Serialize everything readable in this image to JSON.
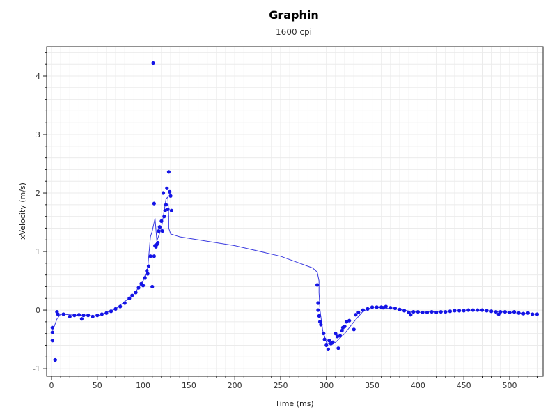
{
  "chart_data": {
    "type": "scatter",
    "title": "Graphin",
    "subtitle": "1600 cpi",
    "xlabel": "Time (ms)",
    "ylabel": "xVelocity (m/s)",
    "xlim": [
      -5.3,
      536.5
    ],
    "ylim": [
      -1.13,
      4.5
    ],
    "xticks": [
      0,
      50,
      100,
      150,
      200,
      250,
      300,
      350,
      400,
      450,
      500
    ],
    "yticks": [
      -1,
      0,
      1,
      2,
      3,
      4
    ],
    "grid": true,
    "colors": {
      "points": "#1414e6",
      "line": "#3a3ae0",
      "grid": "#ebebeb"
    },
    "series": [
      {
        "type": "scatter",
        "points": [
          [
            1,
            -0.3
          ],
          [
            1,
            -0.38
          ],
          [
            1,
            -0.52
          ],
          [
            4,
            -0.85
          ],
          [
            6,
            -0.03
          ],
          [
            7,
            -0.07
          ],
          [
            13,
            -0.07
          ],
          [
            20,
            -0.11
          ],
          [
            25,
            -0.09
          ],
          [
            30,
            -0.08
          ],
          [
            33,
            -0.15
          ],
          [
            35,
            -0.09
          ],
          [
            40,
            -0.09
          ],
          [
            45,
            -0.11
          ],
          [
            50,
            -0.09
          ],
          [
            55,
            -0.07
          ],
          [
            60,
            -0.05
          ],
          [
            65,
            -0.02
          ],
          [
            70,
            0.02
          ],
          [
            75,
            0.06
          ],
          [
            80,
            0.12
          ],
          [
            85,
            0.2
          ],
          [
            88,
            0.25
          ],
          [
            92,
            0.3
          ],
          [
            95,
            0.38
          ],
          [
            98,
            0.45
          ],
          [
            100,
            0.42
          ],
          [
            102,
            0.55
          ],
          [
            104,
            0.67
          ],
          [
            105,
            0.62
          ],
          [
            106,
            0.75
          ],
          [
            108,
            0.92
          ],
          [
            110,
            0.4
          ],
          [
            111,
            4.22
          ],
          [
            112,
            1.82
          ],
          [
            112,
            0.92
          ],
          [
            113,
            1.1
          ],
          [
            114,
            1.08
          ],
          [
            115,
            1.12
          ],
          [
            116,
            1.15
          ],
          [
            117,
            1.35
          ],
          [
            118,
            1.42
          ],
          [
            120,
            1.52
          ],
          [
            121,
            1.35
          ],
          [
            122,
            2.0
          ],
          [
            123,
            1.6
          ],
          [
            124,
            1.7
          ],
          [
            125,
            1.8
          ],
          [
            126,
            2.08
          ],
          [
            127,
            1.72
          ],
          [
            128,
            2.36
          ],
          [
            129,
            2.02
          ],
          [
            130,
            1.95
          ],
          [
            131,
            1.7
          ],
          [
            290,
            0.43
          ],
          [
            291,
            0.12
          ],
          [
            291,
            0.0
          ],
          [
            292,
            -0.1
          ],
          [
            293,
            -0.2
          ],
          [
            294,
            -0.25
          ],
          [
            297,
            -0.4
          ],
          [
            298,
            -0.5
          ],
          [
            300,
            -0.6
          ],
          [
            302,
            -0.67
          ],
          [
            303,
            -0.52
          ],
          [
            305,
            -0.57
          ],
          [
            307,
            -0.55
          ],
          [
            310,
            -0.4
          ],
          [
            312,
            -0.45
          ],
          [
            313,
            -0.65
          ],
          [
            315,
            -0.44
          ],
          [
            317,
            -0.35
          ],
          [
            318,
            -0.3
          ],
          [
            320,
            -0.28
          ],
          [
            322,
            -0.2
          ],
          [
            325,
            -0.18
          ],
          [
            330,
            -0.33
          ],
          [
            332,
            -0.08
          ],
          [
            335,
            -0.04
          ],
          [
            340,
            0.0
          ],
          [
            345,
            0.02
          ],
          [
            350,
            0.05
          ],
          [
            355,
            0.05
          ],
          [
            360,
            0.05
          ],
          [
            362,
            0.04
          ],
          [
            365,
            0.06
          ],
          [
            370,
            0.04
          ],
          [
            375,
            0.03
          ],
          [
            380,
            0.01
          ],
          [
            385,
            -0.01
          ],
          [
            390,
            -0.04
          ],
          [
            392,
            -0.08
          ],
          [
            395,
            -0.03
          ],
          [
            400,
            -0.03
          ],
          [
            405,
            -0.04
          ],
          [
            410,
            -0.04
          ],
          [
            415,
            -0.03
          ],
          [
            420,
            -0.04
          ],
          [
            425,
            -0.03
          ],
          [
            430,
            -0.03
          ],
          [
            435,
            -0.02
          ],
          [
            440,
            -0.01
          ],
          [
            445,
            -0.01
          ],
          [
            450,
            -0.01
          ],
          [
            455,
            0.0
          ],
          [
            460,
            0.0
          ],
          [
            465,
            0.0
          ],
          [
            470,
            0.0
          ],
          [
            475,
            -0.01
          ],
          [
            480,
            -0.02
          ],
          [
            485,
            -0.03
          ],
          [
            488,
            -0.07
          ],
          [
            490,
            -0.03
          ],
          [
            495,
            -0.03
          ],
          [
            500,
            -0.04
          ],
          [
            505,
            -0.03
          ],
          [
            510,
            -0.05
          ],
          [
            515,
            -0.06
          ],
          [
            520,
            -0.05
          ],
          [
            525,
            -0.07
          ],
          [
            530,
            -0.07
          ]
        ]
      },
      {
        "type": "line",
        "points": [
          [
            0,
            -0.3
          ],
          [
            3,
            -0.28
          ],
          [
            6,
            -0.15
          ],
          [
            10,
            -0.07
          ],
          [
            30,
            -0.09
          ],
          [
            50,
            -0.1
          ],
          [
            70,
            0.02
          ],
          [
            90,
            0.27
          ],
          [
            100,
            0.5
          ],
          [
            105,
            0.72
          ],
          [
            108,
            1.25
          ],
          [
            110,
            1.35
          ],
          [
            113,
            1.57
          ],
          [
            115,
            1.18
          ],
          [
            120,
            1.4
          ],
          [
            125,
            1.9
          ],
          [
            127,
            1.93
          ],
          [
            128,
            1.6
          ],
          [
            128,
            1.4
          ],
          [
            130,
            1.3
          ],
          [
            140,
            1.25
          ],
          [
            200,
            1.1
          ],
          [
            250,
            0.92
          ],
          [
            285,
            0.72
          ],
          [
            290,
            0.65
          ],
          [
            292,
            0.5
          ],
          [
            292,
            0.3
          ],
          [
            293,
            0.0
          ],
          [
            296,
            -0.35
          ],
          [
            300,
            -0.55
          ],
          [
            305,
            -0.6
          ],
          [
            310,
            -0.55
          ],
          [
            320,
            -0.4
          ],
          [
            330,
            -0.2
          ],
          [
            340,
            -0.02
          ],
          [
            350,
            0.05
          ],
          [
            360,
            0.04
          ],
          [
            380,
            0.01
          ],
          [
            400,
            -0.04
          ],
          [
            430,
            -0.02
          ],
          [
            470,
            -0.01
          ],
          [
            500,
            -0.04
          ],
          [
            530,
            -0.07
          ]
        ]
      }
    ]
  }
}
